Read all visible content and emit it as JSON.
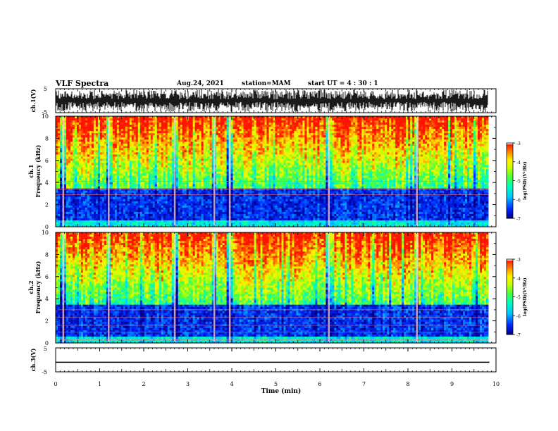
{
  "header": {
    "title": "VLF Spectra",
    "date": "Aug.24, 2021",
    "station": "station=MAM",
    "start": "start UT =  4 : 30 : 1"
  },
  "chart_data": [
    {
      "type": "line",
      "panel": "ch1-waveform",
      "ylabel": "ch.1(V)",
      "ylim": [
        -5,
        5
      ],
      "yticks": [
        "5",
        "-5"
      ],
      "xlim": [
        0,
        10
      ],
      "description_values": {
        "amplitude_range": [
          -5,
          5
        ]
      }
    },
    {
      "type": "heatmap",
      "panel": "ch1-spectrogram",
      "ylabel_line1": "ch.1",
      "ylabel_line2": "Frequency (kHz)",
      "ylim": [
        0,
        10
      ],
      "yticks": [
        "0",
        "2",
        "4",
        "6",
        "8",
        "10"
      ],
      "xlim": [
        0,
        10
      ],
      "colorbar": {
        "label": "log(PSD)(V²/Hz)",
        "range": [
          -7,
          -3
        ],
        "ticks": [
          "-3",
          "-4",
          "-5",
          "-6",
          "-7"
        ]
      },
      "strong_events_min": [
        0.17,
        1.2,
        2.7,
        3.6,
        3.95,
        6.2,
        8.2
      ]
    },
    {
      "type": "heatmap",
      "panel": "ch2-spectrogram",
      "ylabel_line1": "ch.2",
      "ylabel_line2": "Frequency (kHz)",
      "ylim": [
        0,
        10
      ],
      "yticks": [
        "0",
        "2",
        "4",
        "6",
        "8",
        "10"
      ],
      "xlim": [
        0,
        10
      ],
      "colorbar": {
        "label": "log(PSD)(V²/Hz)",
        "range": [
          -7,
          -3
        ],
        "ticks": [
          "-3",
          "-4",
          "-5",
          "-6",
          "-7"
        ]
      },
      "strong_events_min": [
        0.17,
        1.2,
        2.7,
        3.6,
        3.95,
        6.2,
        8.2
      ]
    },
    {
      "type": "line",
      "panel": "ch3-waveform",
      "ylabel": "ch.3(V)",
      "ylim": [
        -5,
        5
      ],
      "yticks": [
        "5",
        "-5"
      ],
      "xlim": [
        0,
        10
      ],
      "x": [
        0,
        9.85
      ],
      "y": [
        -1.0,
        -1.0
      ]
    }
  ],
  "xaxis": {
    "label": "Time (min)",
    "ticks": [
      "0",
      "1",
      "2",
      "3",
      "4",
      "5",
      "6",
      "7",
      "8",
      "9",
      "10"
    ]
  },
  "colors": {
    "palette": [
      "#000000",
      "#0000c8",
      "#0050ff",
      "#00c8ff",
      "#00ffc8",
      "#50ff50",
      "#c8ff00",
      "#ffff00",
      "#ffa000",
      "#ff3000",
      "#ff0000",
      "#ffffff"
    ]
  }
}
